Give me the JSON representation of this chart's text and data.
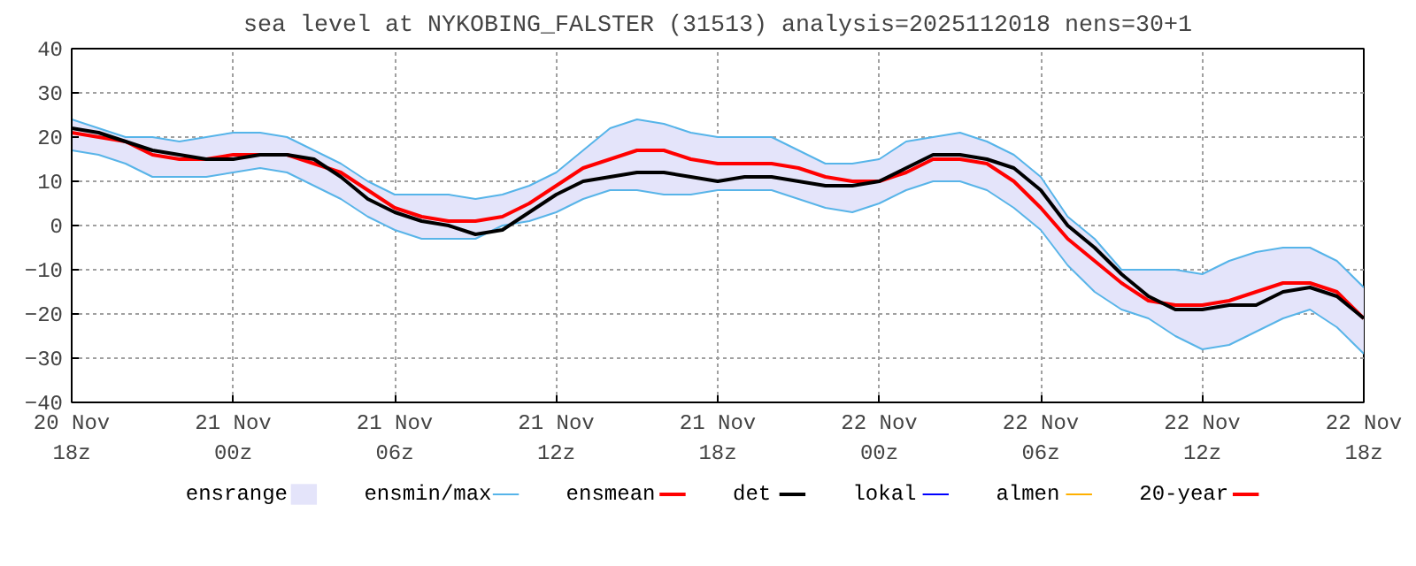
{
  "chart_data": {
    "type": "line",
    "title": "sea level at NYKOBING_FALSTER (31513) analysis=2025112018 nens=30+1",
    "x": [
      "2025-11-20T18:00",
      "2025-11-20T19:00",
      "2025-11-20T20:00",
      "2025-11-20T21:00",
      "2025-11-20T22:00",
      "2025-11-20T23:00",
      "2025-11-21T00:00",
      "2025-11-21T01:00",
      "2025-11-21T02:00",
      "2025-11-21T03:00",
      "2025-11-21T04:00",
      "2025-11-21T05:00",
      "2025-11-21T06:00",
      "2025-11-21T07:00",
      "2025-11-21T08:00",
      "2025-11-21T09:00",
      "2025-11-21T10:00",
      "2025-11-21T11:00",
      "2025-11-21T12:00",
      "2025-11-21T13:00",
      "2025-11-21T14:00",
      "2025-11-21T15:00",
      "2025-11-21T16:00",
      "2025-11-21T17:00",
      "2025-11-21T18:00",
      "2025-11-21T19:00",
      "2025-11-21T20:00",
      "2025-11-21T21:00",
      "2025-11-21T22:00",
      "2025-11-21T23:00",
      "2025-11-22T00:00",
      "2025-11-22T01:00",
      "2025-11-22T02:00",
      "2025-11-22T03:00",
      "2025-11-22T04:00",
      "2025-11-22T05:00",
      "2025-11-22T06:00",
      "2025-11-22T07:00",
      "2025-11-22T08:00",
      "2025-11-22T09:00",
      "2025-11-22T10:00",
      "2025-11-22T11:00",
      "2025-11-22T12:00",
      "2025-11-22T13:00",
      "2025-11-22T14:00",
      "2025-11-22T15:00",
      "2025-11-22T16:00",
      "2025-11-22T17:00",
      "2025-11-22T18:00"
    ],
    "xlim": [
      "2025-11-20T18:00",
      "2025-11-22T18:00"
    ],
    "xticks": [
      {
        "value": "2025-11-20T18:00",
        "label": "20 Nov\n18z"
      },
      {
        "value": "2025-11-21T00:00",
        "label": "21 Nov\n00z"
      },
      {
        "value": "2025-11-21T06:00",
        "label": "21 Nov\n06z"
      },
      {
        "value": "2025-11-21T12:00",
        "label": "21 Nov\n12z"
      },
      {
        "value": "2025-11-21T18:00",
        "label": "21 Nov\n18z"
      },
      {
        "value": "2025-11-22T00:00",
        "label": "22 Nov\n00z"
      },
      {
        "value": "2025-11-22T06:00",
        "label": "22 Nov\n06z"
      },
      {
        "value": "2025-11-22T12:00",
        "label": "22 Nov\n12z"
      },
      {
        "value": "2025-11-22T18:00",
        "label": "22 Nov\n18z"
      }
    ],
    "ylim": [
      -40,
      40
    ],
    "yticks": [
      -40,
      -30,
      -20,
      -10,
      0,
      10,
      20,
      30,
      40
    ],
    "grid": true,
    "legend": "bottom",
    "line_style": "solid",
    "series": [
      {
        "name": "ensrange",
        "type": "area",
        "color": "#e4e4fa",
        "values": [
          null,
          null,
          null,
          null,
          null,
          null,
          null,
          null,
          null,
          null,
          null,
          null,
          null,
          null,
          null,
          null,
          null,
          null,
          null,
          null,
          null,
          null,
          null,
          null,
          null,
          null,
          null,
          null,
          null,
          null,
          null,
          null,
          null,
          null,
          null,
          null,
          null,
          null,
          null,
          null,
          null,
          null,
          null,
          null,
          null,
          null,
          null,
          null,
          null
        ],
        "lower": [
          17,
          16,
          14,
          11,
          11,
          11,
          12,
          13,
          12,
          9,
          6,
          2,
          -1,
          -3,
          -3,
          -3,
          0,
          1,
          3,
          6,
          8,
          8,
          7,
          7,
          8,
          8,
          8,
          6,
          4,
          3,
          5,
          8,
          10,
          10,
          8,
          4,
          -1,
          -9,
          -15,
          -19,
          -21,
          -25,
          -28,
          -27,
          -24,
          -21,
          -19,
          -23,
          -29
        ],
        "upper": [
          24,
          22,
          20,
          20,
          19,
          20,
          21,
          21,
          20,
          17,
          14,
          10,
          7,
          7,
          7,
          6,
          7,
          9,
          12,
          17,
          22,
          24,
          23,
          21,
          20,
          20,
          20,
          17,
          14,
          14,
          15,
          19,
          20,
          21,
          19,
          16,
          11,
          2,
          -3,
          -10,
          -10,
          -10,
          -11,
          -8,
          -6,
          -5,
          -5,
          -8,
          -14
        ]
      },
      {
        "name": "ensmin/max",
        "color": "#56b4e9",
        "values": [
          24,
          22,
          20,
          20,
          19,
          20,
          21,
          21,
          20,
          17,
          14,
          10,
          7,
          7,
          7,
          6,
          7,
          9,
          12,
          17,
          22,
          24,
          23,
          21,
          20,
          20,
          20,
          17,
          14,
          14,
          15,
          19,
          20,
          21,
          19,
          16,
          11,
          2,
          -3,
          -10,
          -10,
          -10,
          -11,
          -8,
          -6,
          -5,
          -5,
          -8,
          -14
        ]
      },
      {
        "color": "#58b4e8",
        "values": [
          17,
          16,
          14,
          11,
          11,
          11,
          12,
          13,
          12,
          9,
          6,
          2,
          -1,
          -3,
          -3,
          -3,
          0,
          1,
          3,
          6,
          8,
          8,
          7,
          7,
          8,
          8,
          8,
          6,
          4,
          3,
          5,
          8,
          10,
          10,
          8,
          4,
          -1,
          -9,
          -15,
          -19,
          -21,
          -25,
          -28,
          -27,
          -24,
          -21,
          -19,
          -23,
          -29
        ]
      },
      {
        "name": "ensmean",
        "color": "#ff0000",
        "values": [
          21,
          20,
          19,
          16,
          15,
          15,
          16,
          16,
          16,
          14,
          12,
          8,
          4,
          2,
          1,
          1,
          2,
          5,
          9,
          13,
          15,
          17,
          17,
          15,
          14,
          14,
          14,
          13,
          11,
          10,
          10,
          12,
          15,
          15,
          14,
          10,
          4,
          -3,
          -8,
          -13,
          -17,
          -18,
          -18,
          -17,
          -15,
          -13,
          -13,
          -15,
          -21
        ]
      },
      {
        "name": "det",
        "color": "#000000",
        "values": [
          22,
          21,
          19,
          17,
          16,
          15,
          15,
          16,
          16,
          15,
          11,
          6,
          3,
          1,
          0,
          -2,
          -1,
          3,
          7,
          10,
          11,
          12,
          12,
          11,
          10,
          11,
          11,
          10,
          9,
          9,
          10,
          13,
          16,
          16,
          15,
          13,
          8,
          0,
          -5,
          -11,
          -16,
          -19,
          -19,
          -18,
          -18,
          -15,
          -14,
          -16,
          -21
        ]
      },
      {
        "name": "lokal",
        "color": "#0000ff",
        "values": [
          null,
          null,
          null,
          null,
          null,
          null,
          null,
          null,
          null,
          null,
          null,
          null,
          null,
          null,
          null,
          null,
          null,
          null,
          null,
          null,
          null,
          null,
          null,
          null,
          null,
          null,
          null,
          null,
          null,
          null,
          null,
          null,
          null,
          null,
          null,
          null,
          null,
          null,
          null,
          null,
          null,
          null,
          null,
          null,
          null,
          null,
          null,
          null,
          null
        ]
      },
      {
        "name": "almen",
        "color": "#ffb000",
        "values": [
          null,
          null,
          null,
          null,
          null,
          null,
          null,
          null,
          null,
          null,
          null,
          null,
          null,
          null,
          null,
          null,
          null,
          null,
          null,
          null,
          null,
          null,
          null,
          null,
          null,
          null,
          null,
          null,
          null,
          null,
          null,
          null,
          null,
          null,
          null,
          null,
          null,
          null,
          null,
          null,
          null,
          null,
          null,
          null,
          null,
          null,
          null,
          null,
          null
        ]
      },
      {
        "name": "20-year",
        "color": "#ff0000",
        "values": [
          null,
          null,
          null,
          null,
          null,
          null,
          null,
          null,
          null,
          null,
          null,
          null,
          null,
          null,
          null,
          null,
          null,
          null,
          null,
          null,
          null,
          null,
          null,
          null,
          null,
          null,
          null,
          null,
          null,
          null,
          null,
          null,
          null,
          null,
          null,
          null,
          null,
          null,
          null,
          null,
          null,
          null,
          null,
          null,
          null,
          null,
          null,
          null,
          null
        ]
      }
    ]
  }
}
